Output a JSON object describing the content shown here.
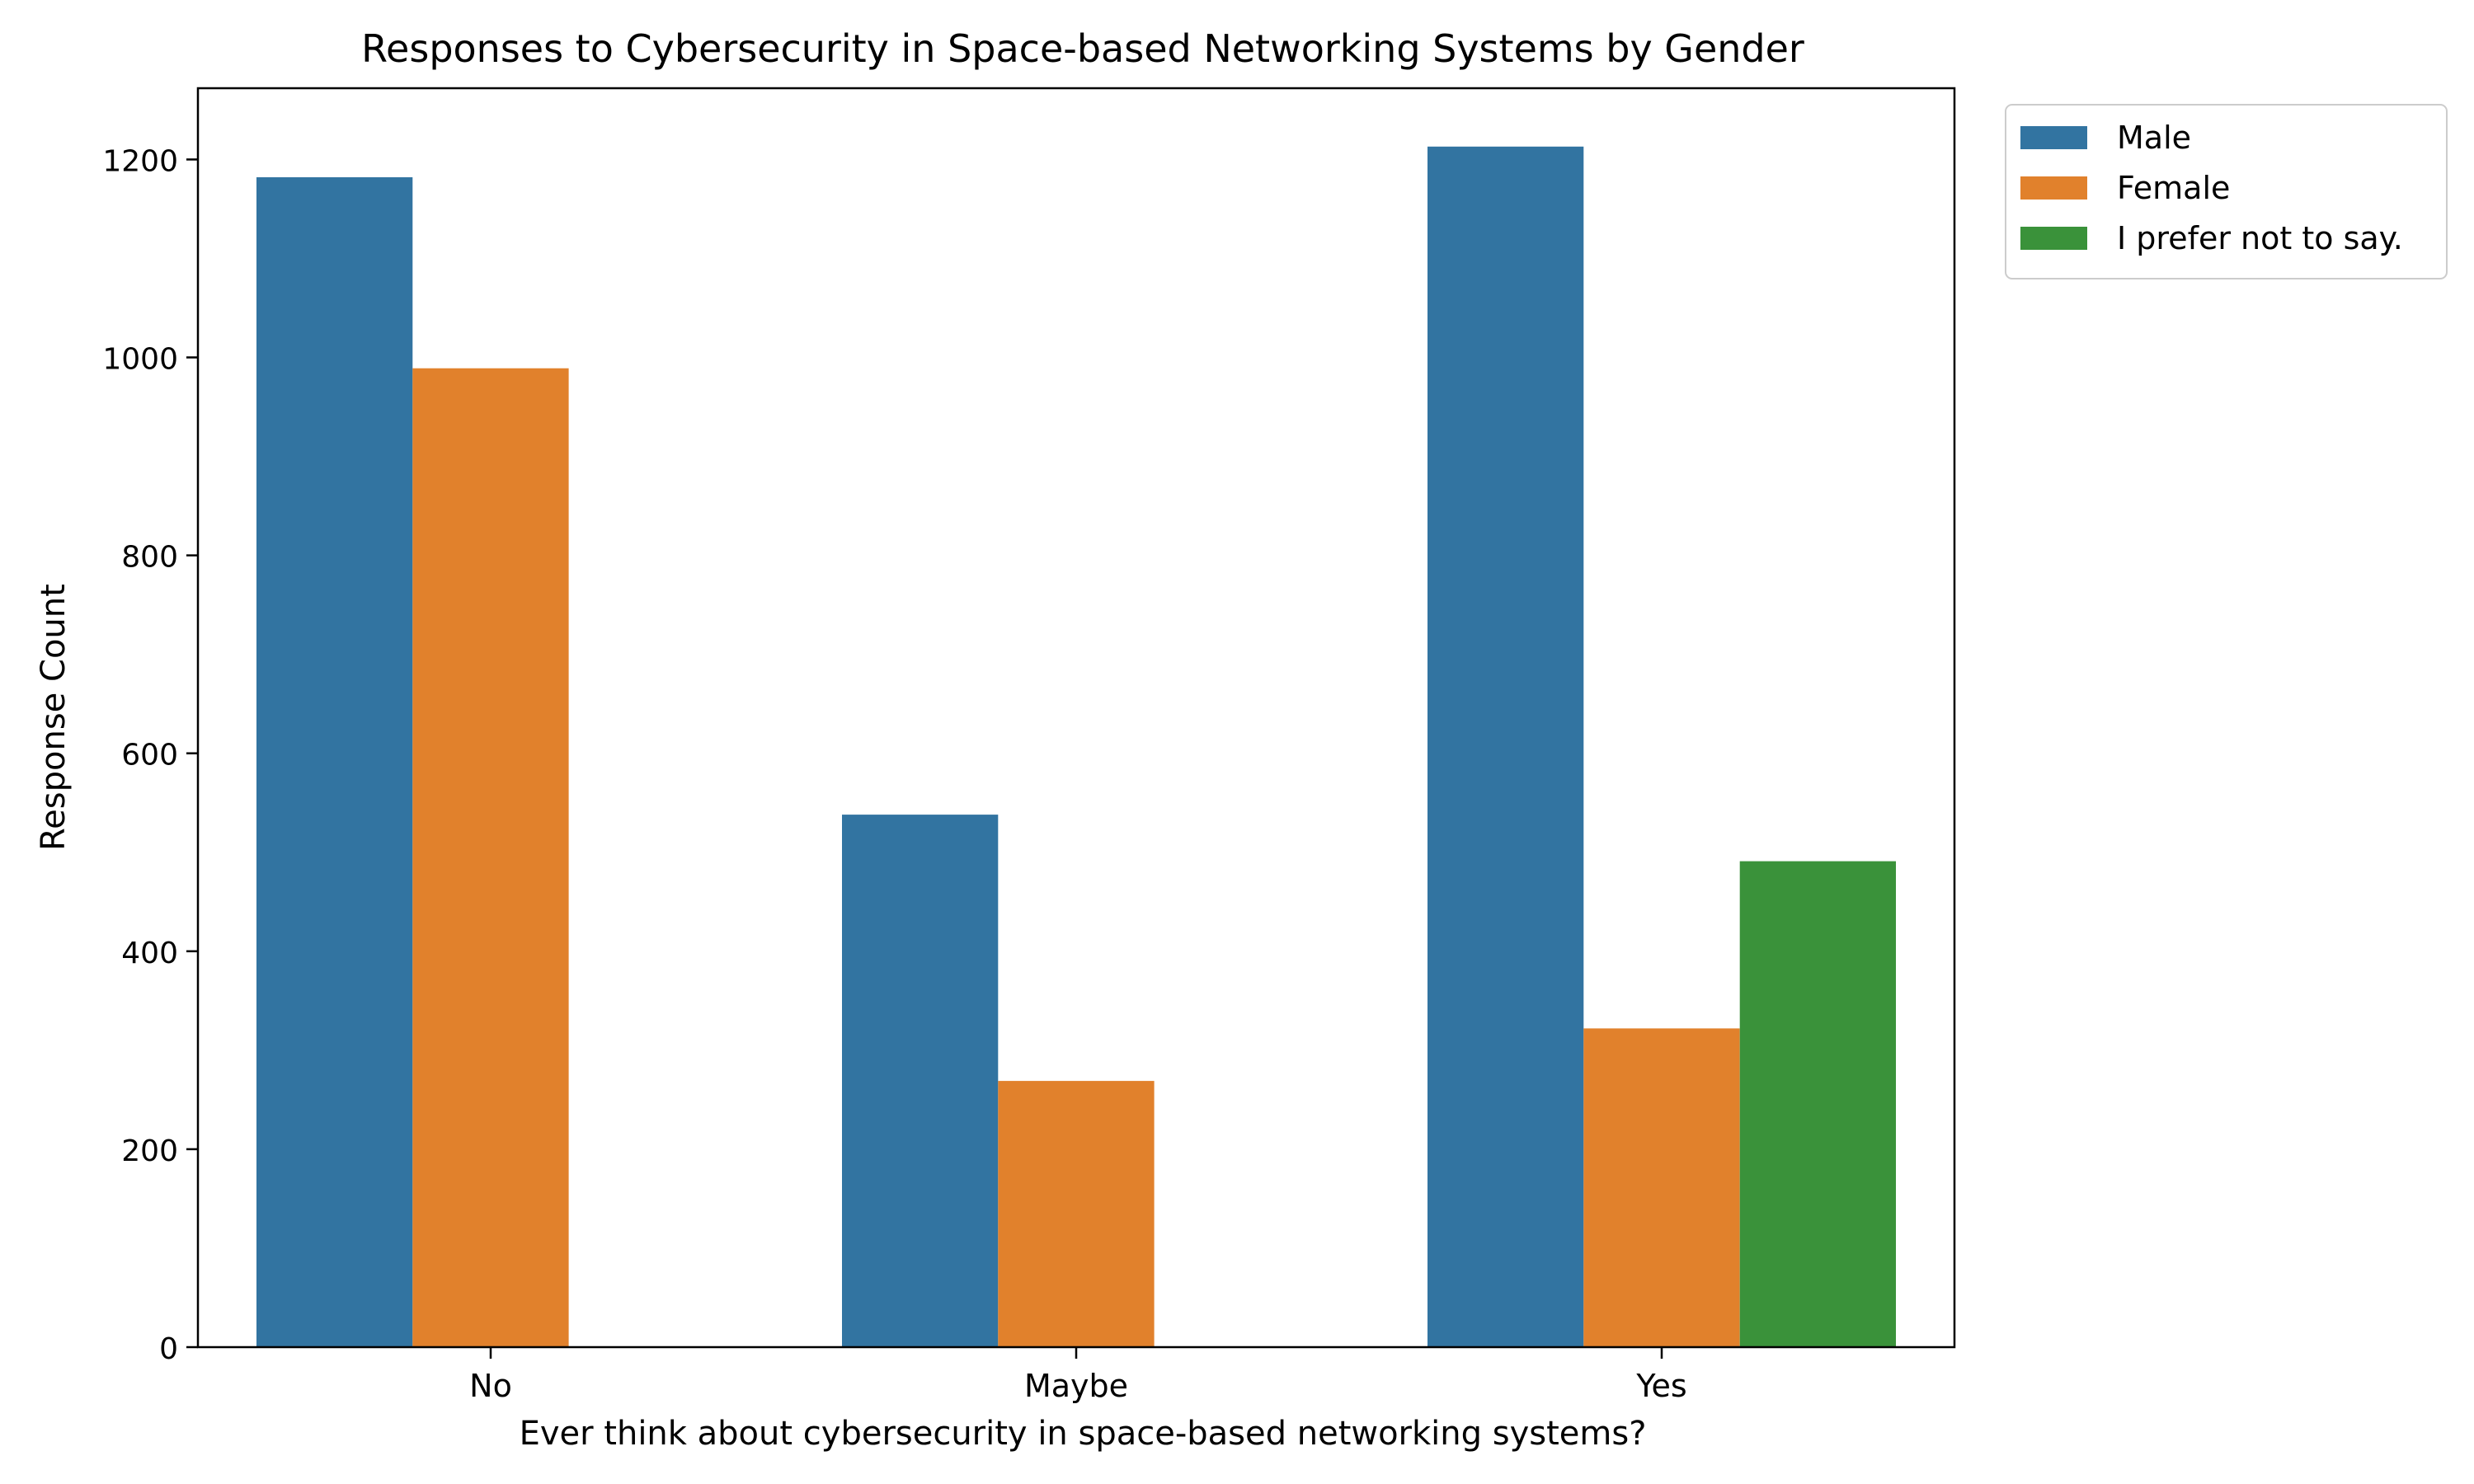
{
  "chart_data": {
    "type": "bar",
    "title": "Responses to Cybersecurity in Space-based Networking Systems by Gender",
    "xlabel": "Ever think about cybersecurity in space-based networking systems?",
    "ylabel": "Response Count",
    "categories": [
      "No",
      "Maybe",
      "Yes"
    ],
    "ylim": [
      0,
      1272
    ],
    "yticks": [
      0,
      200,
      400,
      600,
      800,
      1000,
      1200
    ],
    "grid": false,
    "legend_position": "outside-top-right",
    "series": [
      {
        "name": "Male",
        "color": "#3274a1",
        "values": [
          1182,
          538,
          1213
        ]
      },
      {
        "name": "Female",
        "color": "#e1812c",
        "values": [
          989,
          269,
          322
        ]
      },
      {
        "name": "I prefer not to say.",
        "color": "#3a923a",
        "values": [
          0,
          0,
          491
        ]
      }
    ]
  }
}
